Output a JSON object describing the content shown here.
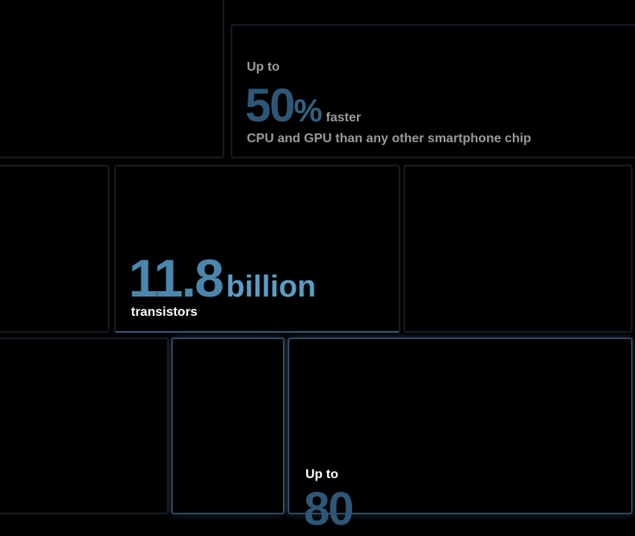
{
  "tiles": [
    {
      "eyebrow": "Up to",
      "figure": "50",
      "unit": "%",
      "suffix": "faster",
      "caption": "CPU and GPU than any other smartphone chip"
    },
    {
      "figure": "11.8",
      "unit": "billion",
      "caption": "transistors"
    },
    {
      "eyebrow": "Up to",
      "figure": "80"
    }
  ]
}
